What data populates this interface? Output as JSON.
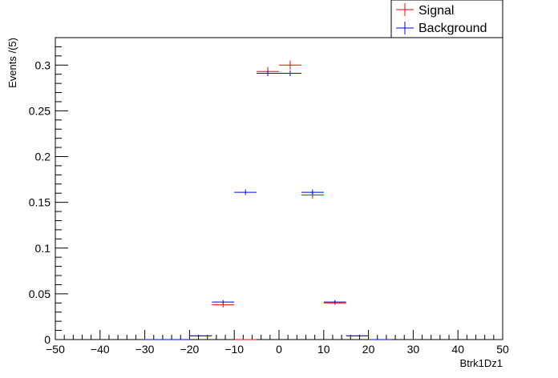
{
  "chart_data": {
    "type": "scatter",
    "xlabel": "Btrk1Dz1",
    "ylabel": "Events /(5)",
    "xlim": [
      -50,
      50
    ],
    "ylim": [
      0,
      0.33
    ],
    "x_ticks": [
      -50,
      -40,
      -30,
      -20,
      -10,
      0,
      10,
      20,
      30,
      40,
      50
    ],
    "y_ticks": [
      0,
      0.05,
      0.1,
      0.15,
      0.2,
      0.25,
      0.3
    ],
    "x_tick_labels": [
      "−50",
      "−40",
      "−30",
      "−20",
      "−10",
      "0",
      "10",
      "20",
      "30",
      "40",
      "50"
    ],
    "y_tick_labels": [
      "0",
      "0.05",
      "0.1",
      "0.15",
      "0.2",
      "0.25",
      "0.3"
    ],
    "bin_width": 5,
    "grid": false,
    "legend_position": "top-right",
    "series": [
      {
        "name": "Signal",
        "color": "#ff0000",
        "x": [
          -27.5,
          -22.5,
          -17.5,
          -12.5,
          -7.5,
          -2.5,
          2.5,
          7.5,
          12.5,
          17.5,
          22.5
        ],
        "y": [
          0,
          0,
          0.004,
          0.038,
          0.0,
          0.293,
          0.3,
          0.158,
          0.04,
          0.004,
          0
        ],
        "yerr": [
          0,
          0,
          0.0006,
          0.003,
          0,
          0.005,
          0.005,
          0.004,
          0.002,
          0.0006,
          0
        ]
      },
      {
        "name": "Background",
        "color": "#0000ff",
        "x": [
          -27.5,
          -22.5,
          -17.5,
          -12.5,
          -7.5,
          -2.5,
          2.5,
          7.5,
          12.5,
          17.5,
          22.5
        ],
        "y": [
          0,
          0,
          0.004,
          0.041,
          0.161,
          0.291,
          0.291,
          0.161,
          0.041,
          0.004,
          0
        ],
        "yerr": [
          0,
          0,
          0.0005,
          0.002,
          0.003,
          0.003,
          0.003,
          0.003,
          0.002,
          0.0005,
          0
        ]
      }
    ]
  }
}
